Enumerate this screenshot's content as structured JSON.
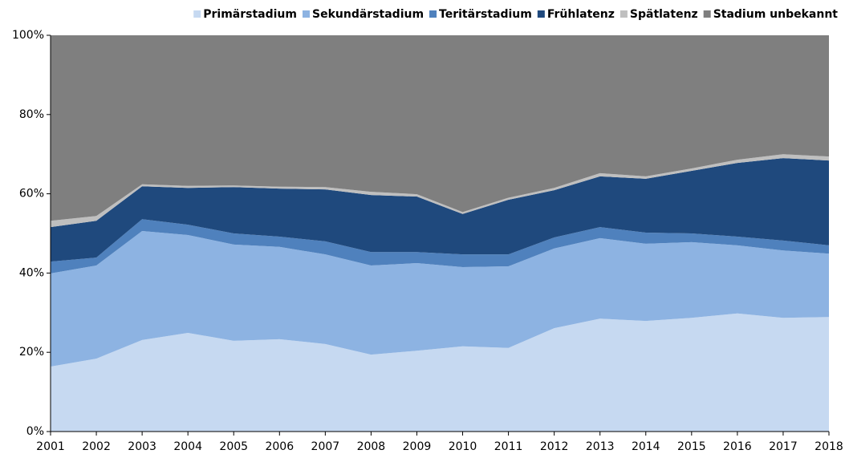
{
  "chart_data": {
    "type": "stacked-area",
    "x": [
      2001,
      2002,
      2003,
      2004,
      2005,
      2006,
      2007,
      2008,
      2009,
      2010,
      2011,
      2012,
      2013,
      2014,
      2015,
      2016,
      2017,
      2018
    ],
    "xlim": [
      2001,
      2018
    ],
    "xticks": [
      2001,
      2002,
      2003,
      2004,
      2005,
      2006,
      2007,
      2008,
      2009,
      2010,
      2011,
      2012,
      2013,
      2014,
      2015,
      2016,
      2017,
      2018
    ],
    "ylim": [
      0,
      100
    ],
    "yticks": [
      {
        "value": 0,
        "label": "0%"
      },
      {
        "value": 20,
        "label": "20%"
      },
      {
        "value": 40,
        "label": "40%"
      },
      {
        "value": 60,
        "label": "60%"
      },
      {
        "value": 80,
        "label": "80%"
      },
      {
        "value": 100,
        "label": "100%"
      }
    ],
    "legend": "top-right",
    "series": [
      {
        "name": "Primärstadium",
        "color": "#c6d9f1",
        "values": [
          16.4,
          18.4,
          23.1,
          24.9,
          22.9,
          23.3,
          22.1,
          19.4,
          20.4,
          21.5,
          21.1,
          26.1,
          28.5,
          27.9,
          28.7,
          29.8,
          28.7,
          28.9
        ]
      },
      {
        "name": "Sekundärstadium",
        "color": "#8db3e2",
        "values": [
          23.5,
          23.5,
          27.5,
          24.7,
          24.3,
          23.3,
          22.6,
          22.5,
          22.1,
          20.0,
          20.6,
          20.1,
          20.3,
          19.5,
          19.1,
          17.2,
          17.0,
          16.0
        ]
      },
      {
        "name": "Teritärstadium",
        "color": "#4f81bd",
        "values": [
          3.0,
          2.0,
          3.0,
          2.6,
          2.8,
          2.6,
          3.3,
          3.4,
          2.8,
          3.2,
          3.0,
          2.8,
          2.8,
          2.8,
          2.2,
          2.2,
          2.5,
          2.1
        ]
      },
      {
        "name": "Frühlatenz",
        "color": "#1f497d",
        "values": [
          8.7,
          9.3,
          8.3,
          9.3,
          11.7,
          12.1,
          13.1,
          14.4,
          14.0,
          10.2,
          13.8,
          11.9,
          12.8,
          13.6,
          15.8,
          18.6,
          20.8,
          21.4
        ]
      },
      {
        "name": "Spätlatenz",
        "color": "#bfbfbf",
        "values": [
          1.6,
          1.2,
          0.5,
          0.5,
          0.4,
          0.5,
          0.6,
          0.8,
          0.6,
          0.5,
          0.5,
          0.6,
          0.8,
          0.6,
          0.6,
          0.8,
          1.0,
          1.0
        ]
      },
      {
        "name": "Stadium unbekannt",
        "color": "#7f7f7f",
        "values": [
          46.8,
          45.6,
          37.6,
          38.0,
          37.9,
          38.2,
          38.3,
          39.5,
          40.1,
          44.6,
          41.0,
          38.5,
          34.8,
          35.6,
          33.6,
          31.4,
          30.0,
          30.6
        ]
      }
    ]
  }
}
